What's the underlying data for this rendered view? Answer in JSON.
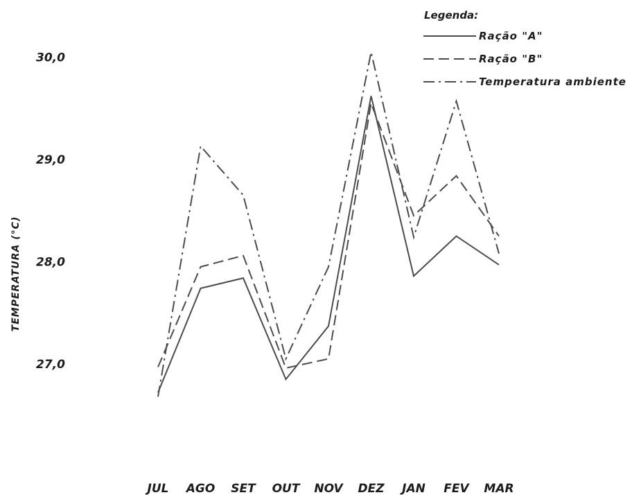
{
  "chart_data": {
    "type": "line",
    "title": "",
    "xlabel": "",
    "ylabel": "TEMPERATURA (°C)",
    "categories": [
      "JUL",
      "AGO",
      "SET",
      "OUT",
      "NOV",
      "DEZ",
      "JAN",
      "FEV",
      "MAR"
    ],
    "yticks": [
      "27,0",
      "28,0",
      "29,0",
      "30,0"
    ],
    "ytick_values": [
      27,
      28,
      29,
      30
    ],
    "ylim": [
      26.0,
      30.5
    ],
    "grid": false,
    "legend": {
      "title": "Legenda:",
      "placement": "top-right"
    },
    "series": [
      {
        "name": "Ração \"A\"",
        "style": "solid",
        "color": "#4a4a4a",
        "values": [
          26.72,
          27.74,
          27.84,
          26.85,
          27.37,
          29.62,
          27.86,
          28.25,
          27.97
        ]
      },
      {
        "name": "Ração \"B\"",
        "style": "dashed",
        "color": "#4a4a4a",
        "values": [
          26.97,
          27.95,
          28.06,
          26.96,
          27.05,
          29.55,
          28.45,
          28.84,
          28.25
        ]
      },
      {
        "name": "Temperatura ambiente",
        "style": "dashdot",
        "color": "#4a4a4a",
        "values": [
          26.68,
          29.13,
          28.65,
          27.05,
          27.95,
          30.05,
          28.24,
          29.57,
          28.08
        ]
      }
    ]
  }
}
